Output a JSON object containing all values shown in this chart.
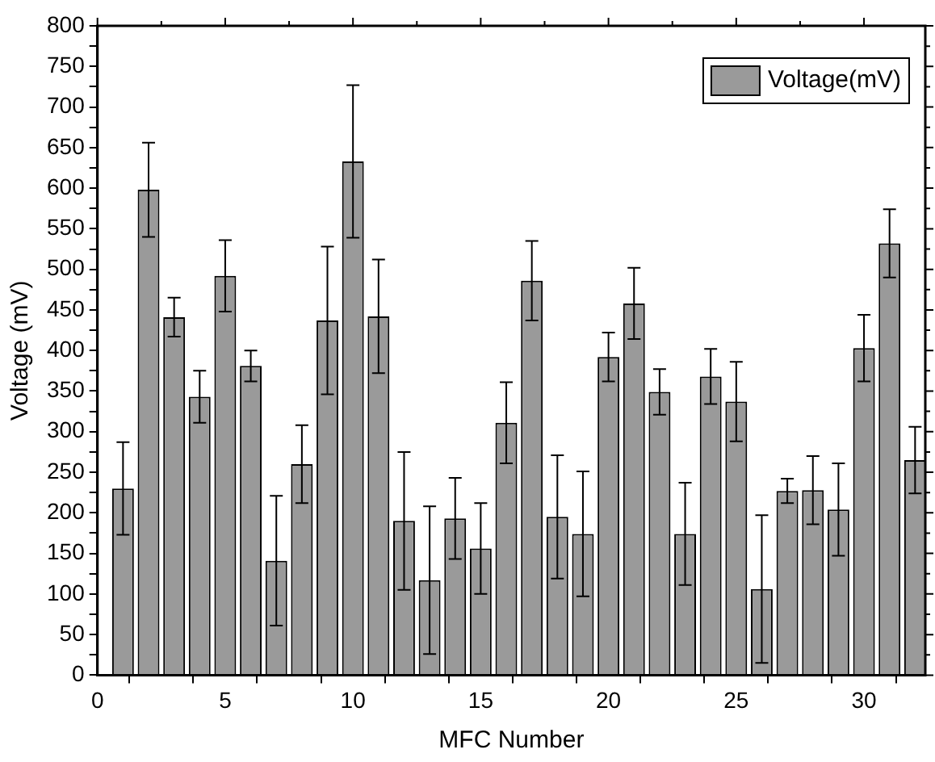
{
  "chart_data": {
    "type": "bar",
    "xlabel": "MFC Number",
    "ylabel": "Voltage (mV)",
    "x": [
      1,
      2,
      3,
      4,
      5,
      6,
      7,
      8,
      9,
      10,
      11,
      12,
      13,
      14,
      15,
      16,
      17,
      18,
      19,
      20,
      21,
      22,
      23,
      24,
      25,
      26,
      27,
      28,
      29,
      30,
      31,
      32
    ],
    "series": [
      {
        "name": "Voltage(mV)",
        "color": "#9a9a9a",
        "values": [
          230,
          598,
          441,
          343,
          492,
          381,
          141,
          260,
          437,
          633,
          442,
          190,
          117,
          193,
          156,
          311,
          486,
          195,
          174,
          392,
          458,
          349,
          174,
          368,
          337,
          106,
          227,
          228,
          204,
          403,
          532,
          265
        ],
        "errors": [
          57,
          58,
          24,
          32,
          44,
          19,
          80,
          48,
          91,
          94,
          70,
          85,
          91,
          50,
          56,
          50,
          49,
          76,
          77,
          30,
          44,
          28,
          63,
          34,
          49,
          91,
          15,
          42,
          57,
          41,
          42,
          41
        ]
      }
    ],
    "xlim": [
      0,
      32.4
    ],
    "xticks": [
      0,
      {
        "value": 2.5,
        "label": null
      },
      5,
      {
        "value": 7.5,
        "label": null
      },
      10,
      {
        "value": 12.5,
        "label": null
      },
      15,
      {
        "value": 17.5,
        "label": null
      },
      20,
      {
        "value": 22.5,
        "label": null
      },
      25,
      {
        "value": 27.5,
        "label": null
      },
      30
    ],
    "ylim": [
      0,
      800
    ],
    "yticks": [
      0,
      {
        "value": 25,
        "label": null
      },
      50,
      {
        "value": 75,
        "label": null
      },
      100,
      {
        "value": 125,
        "label": null
      },
      150,
      {
        "value": 175,
        "label": null
      },
      200,
      {
        "value": 225,
        "label": null
      },
      250,
      {
        "value": 275,
        "label": null
      },
      300,
      {
        "value": 325,
        "label": null
      },
      350,
      {
        "value": 375,
        "label": null
      },
      400,
      {
        "value": 425,
        "label": null
      },
      450,
      {
        "value": 475,
        "label": null
      },
      500,
      {
        "value": 525,
        "label": null
      },
      550,
      {
        "value": 575,
        "label": null
      },
      600,
      {
        "value": 625,
        "label": null
      },
      650,
      {
        "value": 675,
        "label": null
      },
      700,
      {
        "value": 725,
        "label": null
      },
      750,
      {
        "value": 775,
        "label": null
      },
      800
    ],
    "grid": false,
    "legend": "top right"
  }
}
